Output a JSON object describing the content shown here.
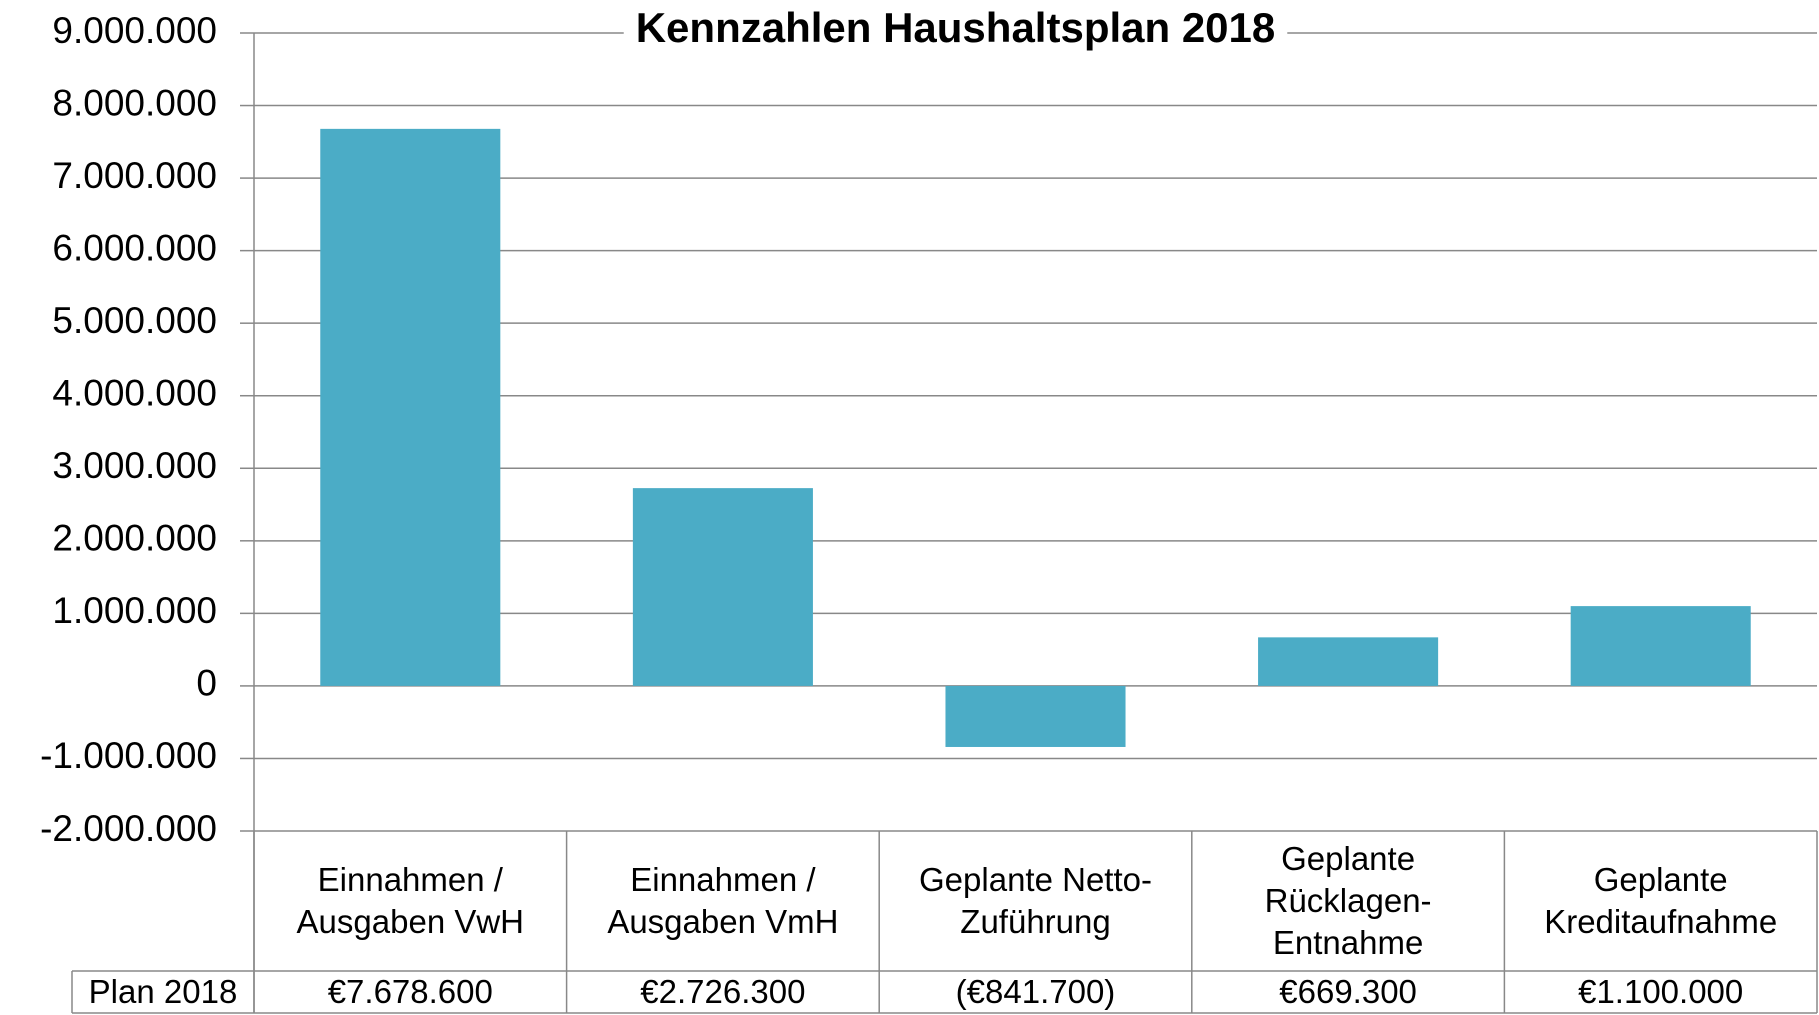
{
  "chart_data": {
    "type": "bar",
    "title": "Kennzahlen Haushaltsplan 2018",
    "categories": [
      "Einnahmen / Ausgaben VwH",
      "Einnahmen / Ausgaben VmH",
      "Geplante Netto-Zuführung",
      "Geplante Rücklagen-Entnahme",
      "Geplante Kreditaufnahme"
    ],
    "series": [
      {
        "name": "Plan 2018",
        "color": "#4bacc6",
        "values": [
          7678600,
          2726300,
          -841700,
          669300,
          1100000
        ],
        "value_labels": [
          "€7.678.600",
          "€2.726.300",
          "(€841.700)",
          "€669.300",
          "€1.100.000"
        ]
      }
    ],
    "ylim": [
      -2000000,
      9000000
    ],
    "yticks": [
      {
        "value": -2000000,
        "label": "-2.000.000"
      },
      {
        "value": -1000000,
        "label": "-1.000.000"
      },
      0,
      {
        "value": 1000000,
        "label": "1.000.000"
      },
      {
        "value": 2000000,
        "label": "2.000.000"
      },
      {
        "value": 3000000,
        "label": "3.000.000"
      },
      {
        "value": 4000000,
        "label": "4.000.000"
      },
      {
        "value": 5000000,
        "label": "5.000.000"
      },
      {
        "value": 6000000,
        "label": "6.000.000"
      },
      {
        "value": 7000000,
        "label": "7.000.000"
      },
      {
        "value": 8000000,
        "label": "8.000.000"
      },
      {
        "value": 9000000,
        "label": "9.000.000"
      }
    ],
    "grid": true
  }
}
